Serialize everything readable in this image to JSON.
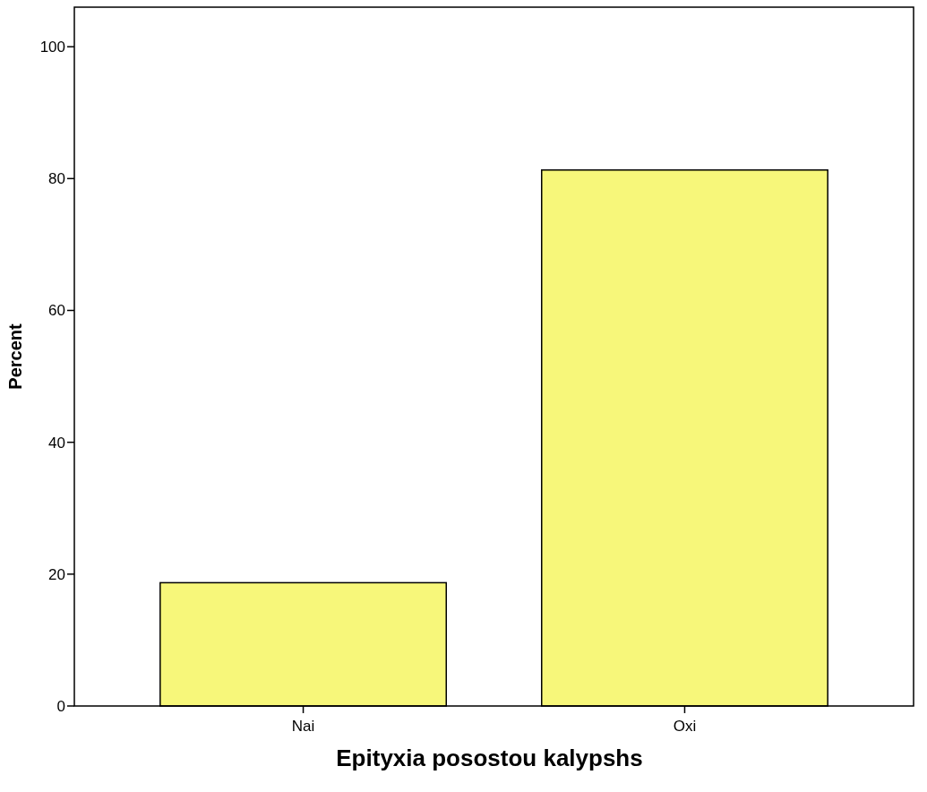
{
  "chart_data": {
    "type": "bar",
    "xlabel": "Epityxia posostou kalypshs",
    "ylabel": "Percent",
    "categories": [
      "Nai",
      "Oxi"
    ],
    "values": [
      18.7,
      81.3
    ],
    "color": "#f7f77a",
    "ylim": [
      0,
      106
    ],
    "yticks": [
      0,
      20,
      40,
      60,
      80,
      100
    ],
    "grid": false
  }
}
